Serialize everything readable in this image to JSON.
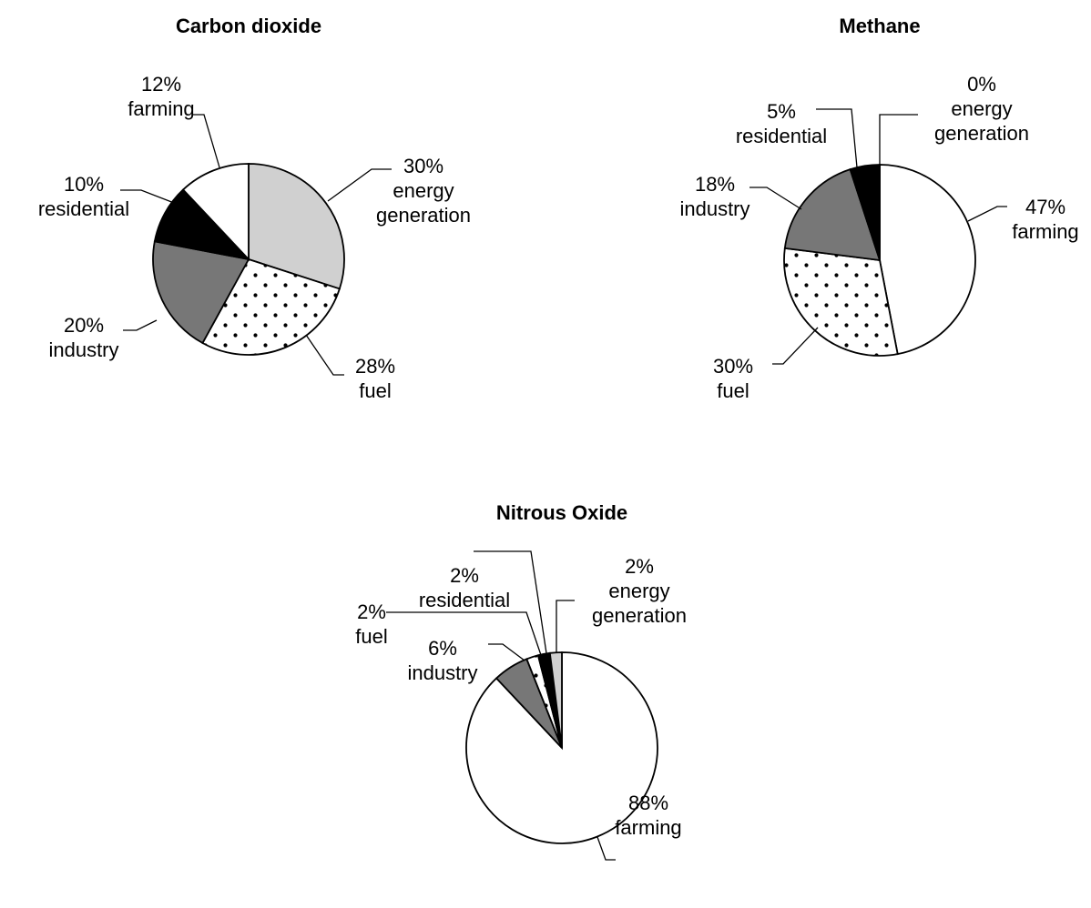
{
  "chart_data": [
    {
      "type": "pie",
      "title": "Carbon dioxide",
      "slices": [
        {
          "category": "energy generation",
          "value": 30,
          "label": "30%",
          "name_lines": [
            "energy",
            "generation"
          ],
          "fill": "light-grey"
        },
        {
          "category": "fuel",
          "value": 28,
          "label": "28%",
          "name_lines": [
            "fuel"
          ],
          "fill": "dotted"
        },
        {
          "category": "industry",
          "value": 20,
          "label": "20%",
          "name_lines": [
            "industry"
          ],
          "fill": "dark-grey"
        },
        {
          "category": "residential",
          "value": 10,
          "label": "10%",
          "name_lines": [
            "residential"
          ],
          "fill": "black"
        },
        {
          "category": "farming",
          "value": 12,
          "label": "12%",
          "name_lines": [
            "farming"
          ],
          "fill": "white"
        }
      ]
    },
    {
      "type": "pie",
      "title": "Methane",
      "slices": [
        {
          "category": "farming",
          "value": 47,
          "label": "47%",
          "name_lines": [
            "farming"
          ],
          "fill": "white"
        },
        {
          "category": "fuel",
          "value": 30,
          "label": "30%",
          "name_lines": [
            "fuel"
          ],
          "fill": "dotted"
        },
        {
          "category": "industry",
          "value": 18,
          "label": "18%",
          "name_lines": [
            "industry"
          ],
          "fill": "dark-grey"
        },
        {
          "category": "residential",
          "value": 5,
          "label": "5%",
          "name_lines": [
            "residential"
          ],
          "fill": "black"
        },
        {
          "category": "energy generation",
          "value": 0,
          "label": "0%",
          "name_lines": [
            "energy",
            "generation"
          ],
          "fill": "light-grey"
        }
      ]
    },
    {
      "type": "pie",
      "title": "Nitrous Oxide",
      "slices": [
        {
          "category": "farming",
          "value": 88,
          "label": "88%",
          "name_lines": [
            "farming"
          ],
          "fill": "white"
        },
        {
          "category": "industry",
          "value": 6,
          "label": "6%",
          "name_lines": [
            "industry"
          ],
          "fill": "dark-grey"
        },
        {
          "category": "fuel",
          "value": 2,
          "label": "2%",
          "name_lines": [
            "fuel"
          ],
          "fill": "dotted"
        },
        {
          "category": "residential",
          "value": 2,
          "label": "2%",
          "name_lines": [
            "residential"
          ],
          "fill": "black"
        },
        {
          "category": "energy generation",
          "value": 2,
          "label": "2%",
          "name_lines": [
            "energy",
            "generation"
          ],
          "fill": "light-grey"
        }
      ]
    }
  ],
  "fill_colors": {
    "white": "#ffffff",
    "light-grey": "#d0d0d0",
    "dark-grey": "#777777",
    "black": "#000000",
    "dotted-base": "#ffffff",
    "dotted-dot": "#000000"
  }
}
